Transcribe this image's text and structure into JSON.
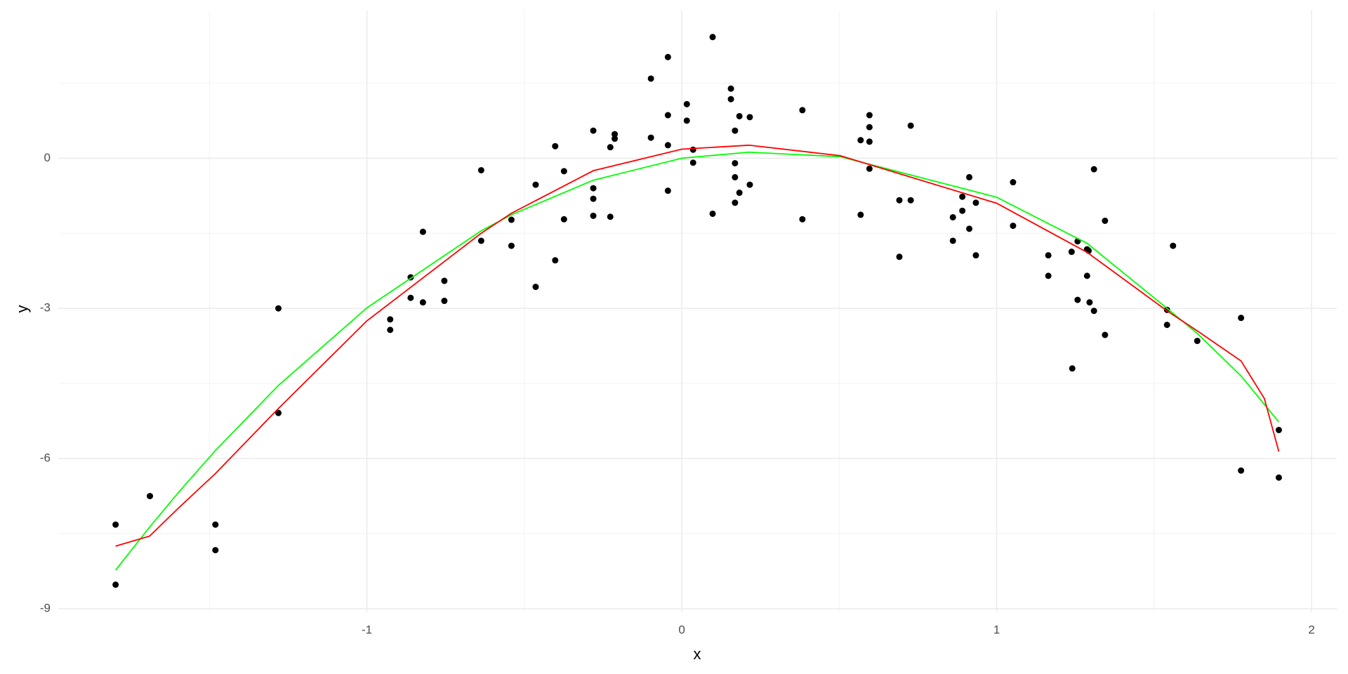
{
  "chart_data": {
    "type": "scatter",
    "x_label": "x",
    "y_label": "y",
    "xlim": [
      -1.98,
      2.08
    ],
    "ylim": [
      -9.07,
      2.95
    ],
    "xticks": [
      -1,
      0,
      1,
      2
    ],
    "yticks": [
      -9,
      -6,
      -3,
      0
    ],
    "xminor": [
      -1.5,
      -0.5,
      0.5,
      1.5
    ],
    "yminor": [
      -7.5,
      -4.5,
      -1.5,
      1.5
    ],
    "grid": true,
    "color": "#000000",
    "x": [
      -1.798,
      -1.798,
      -1.689,
      -1.481,
      -1.481,
      -1.281,
      -1.281,
      -0.926,
      -0.926,
      -0.861,
      -0.861,
      -0.822,
      -0.822,
      -0.754,
      -0.754,
      -0.637,
      -0.637,
      -0.541,
      -0.541,
      -0.464,
      -0.464,
      -0.402,
      -0.402,
      -0.374,
      -0.374,
      -0.281,
      -0.281,
      -0.281,
      -0.281,
      -0.227,
      -0.227,
      -0.213,
      -0.213,
      -0.098,
      -0.098,
      -0.044,
      -0.044,
      -0.044,
      -0.044,
      0.016,
      0.016,
      0.036,
      0.036,
      0.098,
      0.098,
      0.156,
      0.156,
      0.169,
      0.169,
      0.169,
      0.169,
      0.183,
      0.183,
      0.216,
      0.216,
      0.383,
      0.383,
      0.568,
      0.568,
      0.596,
      0.596,
      0.596,
      0.596,
      0.691,
      0.691,
      0.727,
      0.727,
      0.861,
      0.861,
      0.891,
      0.891,
      0.913,
      0.913,
      0.934,
      0.934,
      1.052,
      1.052,
      1.164,
      1.164,
      1.238,
      1.24,
      1.257,
      1.257,
      1.287,
      1.287,
      1.292,
      1.295,
      1.309,
      1.309,
      1.344,
      1.344,
      1.541,
      1.541,
      1.56,
      1.637,
      1.776,
      1.776,
      1.896,
      1.896
    ],
    "values": [
      -7.32,
      -8.52,
      -6.75,
      -7.32,
      -7.83,
      -3.0,
      -5.09,
      -3.22,
      -3.43,
      -2.38,
      -2.79,
      -1.47,
      -2.88,
      -2.45,
      -2.85,
      -0.24,
      -1.65,
      -1.23,
      -1.75,
      -0.53,
      -2.57,
      0.24,
      -2.04,
      -0.26,
      -1.22,
      0.55,
      -0.6,
      -0.81,
      -1.15,
      0.22,
      -1.17,
      0.48,
      0.39,
      1.59,
      0.41,
      2.02,
      0.86,
      0.26,
      -0.65,
      1.08,
      0.75,
      0.17,
      -0.09,
      2.42,
      -1.11,
      1.39,
      1.18,
      0.55,
      -0.1,
      -0.38,
      -0.89,
      0.84,
      -0.69,
      0.82,
      -0.53,
      0.96,
      -1.22,
      0.36,
      -1.13,
      0.86,
      0.62,
      0.33,
      -0.21,
      -0.84,
      -1.97,
      0.65,
      -0.84,
      -1.18,
      -1.65,
      -0.77,
      -1.05,
      -0.38,
      -1.41,
      -0.89,
      -1.94,
      -0.48,
      -1.35,
      -1.94,
      -2.35,
      -1.87,
      -4.2,
      -1.66,
      -2.83,
      -1.82,
      -2.35,
      -1.85,
      -2.88,
      -0.22,
      -3.05,
      -1.25,
      -3.53,
      -3.03,
      -3.33,
      -1.75,
      -3.65,
      -3.19,
      -6.24,
      -5.43,
      -6.38
    ],
    "fits": [
      {
        "color": "#00ff00",
        "x": [
          -1.798,
          -1.69,
          -1.6,
          -1.481,
          -1.281,
          -1.0,
          -0.637,
          -0.541,
          -0.281,
          0,
          0.213,
          0.503,
          1.0,
          1.287,
          1.541,
          1.637,
          1.776,
          1.896
        ],
        "values": [
          -8.23,
          -7.37,
          -6.69,
          -5.84,
          -4.54,
          -2.99,
          -1.45,
          -1.13,
          -0.44,
          0.0,
          0.12,
          0.03,
          -0.78,
          -1.7,
          -3.0,
          -3.5,
          -4.35,
          -5.27
        ]
      },
      {
        "color": "#ff0000",
        "x": [
          -1.798,
          -1.69,
          -1.6,
          -1.481,
          -1.281,
          -1.0,
          -0.637,
          -0.541,
          -0.281,
          0,
          0.213,
          0.503,
          1.0,
          1.287,
          1.541,
          1.637,
          1.776,
          1.85,
          1.896
        ],
        "values": [
          -7.75,
          -7.55,
          -7.0,
          -6.3,
          -5.0,
          -3.25,
          -1.5,
          -1.1,
          -0.25,
          0.18,
          0.26,
          0.05,
          -0.9,
          -1.88,
          -3.05,
          -3.45,
          -4.05,
          -4.8,
          -5.86
        ]
      }
    ]
  }
}
